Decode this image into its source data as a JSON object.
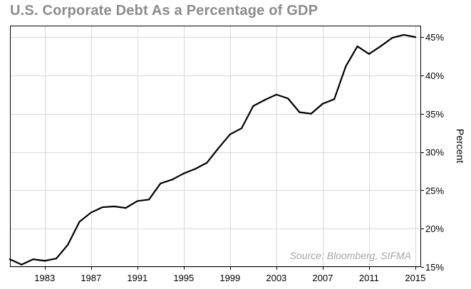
{
  "chart_data": {
    "type": "line",
    "title": "U.S. Corporate Debt As a Percentage of GDP",
    "xlabel": "",
    "ylabel": "Percent",
    "source_note": "Source: Bloomberg, SIFMA",
    "xlim": [
      1980,
      2015.5
    ],
    "ylim": [
      15,
      46.5
    ],
    "x_ticks": [
      1983,
      1987,
      1991,
      1995,
      1999,
      2003,
      2007,
      2011,
      2015
    ],
    "x_tick_labels": [
      "1983",
      "1987",
      "1991",
      "1995",
      "1999",
      "2003",
      "2007",
      "2011",
      "2015"
    ],
    "y_ticks": [
      15,
      20,
      25,
      30,
      35,
      40,
      45
    ],
    "y_tick_labels": [
      "15%",
      "20%",
      "25%",
      "30%",
      "35%",
      "40%",
      "45%"
    ],
    "y_axis_position": "right",
    "grid": true,
    "line_color": "#000000",
    "x": [
      1980,
      1981,
      1982,
      1983,
      1984,
      1985,
      1986,
      1987,
      1988,
      1989,
      1990,
      1991,
      1992,
      1993,
      1994,
      1995,
      1996,
      1997,
      1998,
      1999,
      2000,
      2001,
      2002,
      2003,
      2004,
      2005,
      2006,
      2007,
      2008,
      2009,
      2010,
      2011,
      2012,
      2013,
      2014,
      2015
    ],
    "values": [
      16.0,
      15.3,
      16.0,
      15.8,
      16.1,
      17.9,
      20.9,
      22.1,
      22.8,
      22.9,
      22.7,
      23.6,
      23.8,
      25.9,
      26.4,
      27.2,
      27.8,
      28.6,
      30.5,
      32.3,
      33.1,
      36.0,
      36.8,
      37.5,
      37.0,
      35.2,
      35.0,
      36.3,
      36.9,
      41.2,
      43.8,
      42.8,
      43.8,
      44.9,
      45.3,
      45.0
    ]
  }
}
